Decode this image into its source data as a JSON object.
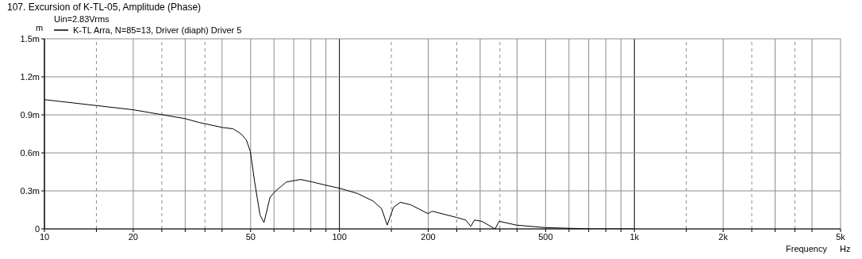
{
  "chart_data": {
    "type": "line",
    "title": "107. Excursion of K-TL-05, Amplitude (Phase)",
    "annotations": [
      "Uin=2.83Vrms",
      "Hz"
    ],
    "xlabel": "Frequency",
    "ylabel": "m",
    "log": "x",
    "grid": true,
    "legend": "top left",
    "marker": "none",
    "line_style": "solid",
    "xlim": [
      10,
      5000
    ],
    "xticks": [
      10,
      {
        "value": 15,
        "label": null
      },
      20,
      {
        "value": 25,
        "label": null
      },
      {
        "value": 30,
        "label": null
      },
      {
        "value": 35,
        "label": null
      },
      {
        "value": 40,
        "label": null
      },
      50,
      {
        "value": 60,
        "label": null
      },
      {
        "value": 70,
        "label": null
      },
      {
        "value": 80,
        "label": null
      },
      {
        "value": 90,
        "label": null
      },
      100,
      {
        "value": 150,
        "label": null
      },
      200,
      {
        "value": 250,
        "label": null
      },
      {
        "value": 300,
        "label": null
      },
      {
        "value": 350,
        "label": null
      },
      {
        "value": 400,
        "label": null
      },
      500,
      {
        "value": 600,
        "label": null
      },
      {
        "value": 700,
        "label": null
      },
      {
        "value": 800,
        "label": null
      },
      {
        "value": 900,
        "label": null
      },
      {
        "value": 1000,
        "label": "1k"
      },
      {
        "value": 1500,
        "label": null
      },
      {
        "value": 2000,
        "label": "2k"
      },
      {
        "value": 2500,
        "label": null
      },
      {
        "value": 3000,
        "label": null
      },
      {
        "value": 3500,
        "label": null
      },
      {
        "value": 4000,
        "label": null
      },
      {
        "value": 5000,
        "label": "5k"
      }
    ],
    "ylim": [
      0,
      1.5
    ],
    "yticks": [
      0,
      {
        "value": 0.3,
        "label": "0.3m"
      },
      {
        "value": 0.6,
        "label": "0.6m"
      },
      {
        "value": 0.9,
        "label": "0.9m"
      },
      {
        "value": 1.2,
        "label": "1.2m"
      },
      {
        "value": 1.5,
        "label": "1.5m"
      }
    ],
    "series": [
      {
        "name": "K-TL Arra, N=85=13, Driver (diaph) Driver 5",
        "color": "#000000",
        "x": [
          10,
          20,
          30,
          33.4,
          40.2,
          43.6,
          46.4,
          48.4,
          49.9,
          51.6,
          53.8,
          55.5,
          58.2,
          60.8,
          66.1,
          73.9,
          81,
          91.8,
          100.4,
          115,
          130,
          139,
          145.2,
          152.5,
          160.7,
          174.5,
          200,
          206,
          250,
          268,
          279,
          287,
          304,
          337,
          348,
          398,
          500,
          720,
          1000
        ],
        "values": [
          1.02,
          0.94,
          0.87,
          0.84,
          0.8,
          0.79,
          0.75,
          0.7,
          0.61,
          0.37,
          0.11,
          0.05,
          0.25,
          0.3,
          0.37,
          0.39,
          0.37,
          0.34,
          0.32,
          0.28,
          0.22,
          0.16,
          0.03,
          0.17,
          0.21,
          0.19,
          0.12,
          0.14,
          0.09,
          0.07,
          0.02,
          0.07,
          0.06,
          0.0,
          0.06,
          0.03,
          0.01,
          0.0,
          0.0
        ]
      }
    ]
  }
}
